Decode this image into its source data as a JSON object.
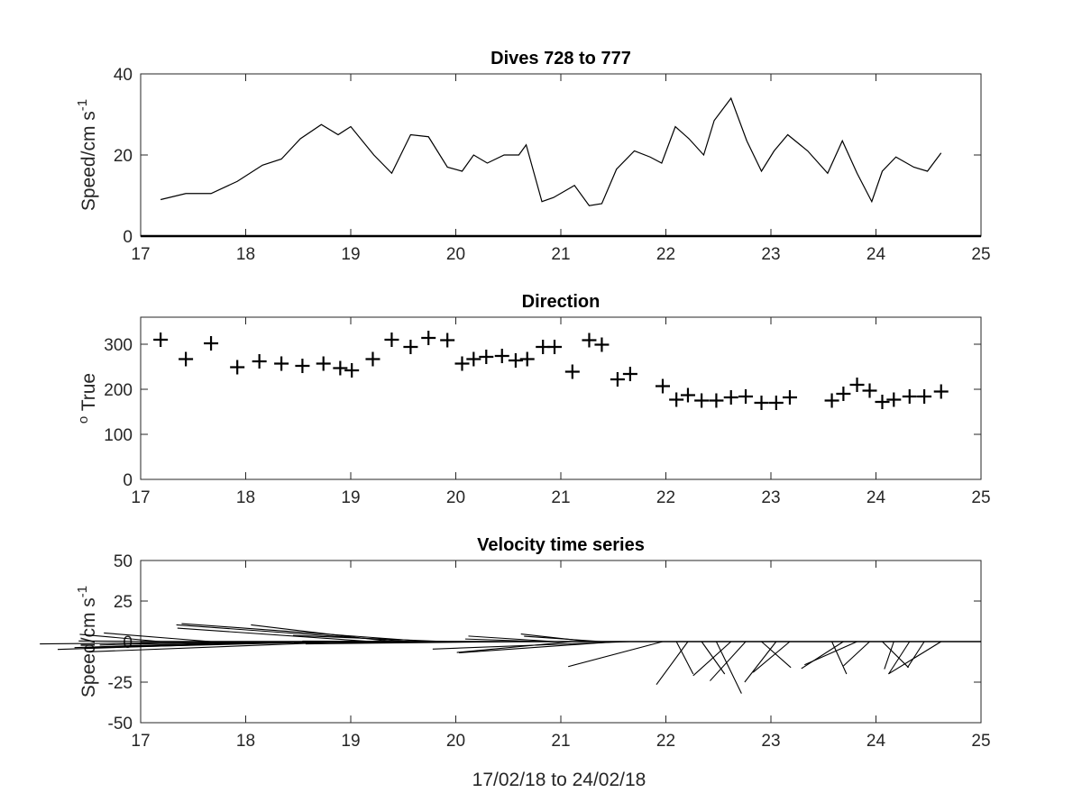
{
  "figure": {
    "xlabel": "17/02/18 to 24/02/18"
  },
  "chart_data": [
    {
      "type": "line",
      "title": "Dives 728 to 777",
      "ylabel": "Speed/cm s",
      "ylabel_sup": "-1",
      "xlim": [
        17,
        25
      ],
      "ylim": [
        0,
        40
      ],
      "xticks": [
        17,
        18,
        19,
        20,
        21,
        22,
        23,
        24,
        25
      ],
      "yticks": [
        0,
        20,
        40
      ],
      "grid": false,
      "color": "#000000",
      "x": [
        17.19,
        17.43,
        17.67,
        17.92,
        18.16,
        18.34,
        18.52,
        18.72,
        18.88,
        19.0,
        19.22,
        19.39,
        19.57,
        19.74,
        19.92,
        20.06,
        20.17,
        20.3,
        20.46,
        20.6,
        20.67,
        20.82,
        20.93,
        21.13,
        21.27,
        21.39,
        21.53,
        21.7,
        21.85,
        21.96,
        22.09,
        22.22,
        22.36,
        22.46,
        22.62,
        22.77,
        22.91,
        23.03,
        23.16,
        23.35,
        23.54,
        23.68,
        23.82,
        23.96,
        24.06,
        24.19,
        24.36,
        24.49,
        24.62
      ],
      "y": [
        9,
        10.5,
        10.5,
        13.5,
        17.5,
        19,
        24,
        27.5,
        25,
        27,
        20,
        15.5,
        25,
        24.5,
        17,
        16,
        20,
        18,
        20,
        20,
        22.5,
        8.5,
        9.5,
        12.5,
        7.5,
        8,
        16.5,
        21,
        19.5,
        18,
        27,
        24,
        20,
        28.5,
        34,
        23.5,
        16,
        21,
        25,
        21,
        15.5,
        23.5,
        15.5,
        8.5,
        16,
        19.5,
        17,
        16,
        20.5
      ]
    },
    {
      "type": "scatter",
      "title": "Direction",
      "ylabel": "True",
      "ylabel_sup": "o",
      "xlim": [
        17,
        25
      ],
      "ylim": [
        0,
        360
      ],
      "xticks": [
        17,
        18,
        19,
        20,
        21,
        22,
        23,
        24,
        25
      ],
      "yticks": [
        0,
        100,
        200,
        300
      ],
      "marker": "+",
      "grid": false,
      "color": "#000000",
      "x": [
        17.19,
        17.43,
        17.67,
        17.92,
        18.13,
        18.34,
        18.54,
        18.74,
        18.9,
        19.01,
        19.21,
        19.39,
        19.57,
        19.74,
        19.92,
        20.06,
        20.17,
        20.29,
        20.44,
        20.57,
        20.68,
        20.83,
        20.94,
        21.11,
        21.27,
        21.39,
        21.54,
        21.66,
        21.97,
        22.1,
        22.21,
        22.34,
        22.48,
        22.62,
        22.76,
        22.91,
        23.05,
        23.18,
        23.58,
        23.69,
        23.82,
        23.94,
        24.06,
        24.17,
        24.32,
        24.46,
        24.62
      ],
      "y": [
        310,
        267,
        302,
        249,
        262,
        257,
        252,
        257,
        247,
        242,
        267,
        310,
        294,
        314,
        309,
        257,
        267,
        272,
        274,
        264,
        267,
        294,
        294,
        239,
        309,
        299,
        222,
        234,
        207,
        177,
        187,
        175,
        175,
        182,
        184,
        170,
        170,
        182,
        175,
        190,
        210,
        197,
        172,
        177,
        184,
        184,
        195
      ]
    },
    {
      "type": "quiver",
      "title": "Velocity time series",
      "ylabel": "Speed/cm s",
      "ylabel_sup": "-1",
      "xlim": [
        17,
        25
      ],
      "ylim": [
        -50,
        50
      ],
      "xticks": [
        17,
        18,
        19,
        20,
        21,
        22,
        23,
        24,
        25
      ],
      "yticks": [
        -50,
        -25,
        0,
        25,
        50
      ],
      "grid": false,
      "color": "#000000",
      "x": [
        17.19,
        17.43,
        17.67,
        17.92,
        18.13,
        18.34,
        18.54,
        18.74,
        18.9,
        19.01,
        19.21,
        19.39,
        19.57,
        19.74,
        19.92,
        20.06,
        20.17,
        20.29,
        20.44,
        20.57,
        20.68,
        20.83,
        20.94,
        21.11,
        21.27,
        21.39,
        21.54,
        21.66,
        21.97,
        22.1,
        22.21,
        22.34,
        22.48,
        22.62,
        22.76,
        22.91,
        23.05,
        23.18,
        23.58,
        23.69,
        23.82,
        23.94,
        24.06,
        24.17,
        24.32,
        24.46,
        24.62
      ],
      "u": [
        -7.7,
        -10.2,
        -10.2,
        -13.1,
        -17.6,
        -18.4,
        -23.3,
        -27.0,
        -24.3,
        -25.0,
        -18.6,
        -13.4,
        -22.3,
        -23.5,
        -14.7,
        -16.0,
        -19.6,
        -16.7,
        -19.0,
        -20.0,
        -20.8,
        -7.4,
        -8.2,
        -11.0,
        -6.5,
        -7.4,
        -15.1,
        -18.8,
        -9.0,
        1.6,
        -3.0,
        2.2,
        2.4,
        -3.6,
        -3.4,
        2.8,
        -3.0,
        -3.5,
        1.4,
        -4.0,
        -5.0,
        -2.5,
        2.5,
        -0.9,
        -2.0,
        -1.6,
        -5.0
      ],
      "v": [
        4.5,
        0.4,
        5.3,
        -2.1,
        -3.7,
        -3.6,
        -4.8,
        -1.4,
        -3.9,
        -6.3,
        8.3,
        10.3,
        10.3,
        11.1,
        3.8,
        -0.8,
        -0.6,
        -0.6,
        0.3,
        -1.4,
        -0.5,
        1.6,
        3.4,
        -6.7,
        4.7,
        3.3,
        -6.9,
        -4.6,
        -15.4,
        -20.0,
        -26.5,
        -20.0,
        -32.0,
        -21.0,
        -24.2,
        -16.0,
        -25.0,
        -19.0,
        -20.0,
        -16.6,
        -14.3,
        -15.0,
        -16.0,
        -17.0,
        -20.0,
        -16.0,
        -19.9
      ]
    }
  ]
}
